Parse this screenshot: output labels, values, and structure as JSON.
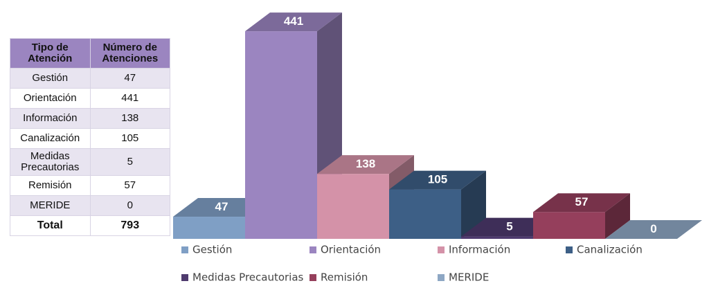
{
  "table": {
    "header": [
      "Tipo de Atención",
      "Número de Atenciones"
    ],
    "rows": [
      [
        "Gestión",
        47
      ],
      [
        "Orientación",
        441
      ],
      [
        "Información",
        138
      ],
      [
        "Canalización",
        105
      ],
      [
        "Medidas Precautorias",
        5
      ],
      [
        "Remisión",
        57
      ],
      [
        "MERIDE",
        0
      ]
    ],
    "total": [
      "Total",
      793
    ]
  },
  "chart_data": {
    "type": "bar3d",
    "categories": [
      "Gestión",
      "Orientación",
      "Información",
      "Canalización",
      "Medidas Precautorias",
      "Remisión",
      "MERIDE"
    ],
    "values": [
      47,
      441,
      138,
      105,
      5,
      57,
      0
    ],
    "colors": [
      "#7f9fc5",
      "#9b85c0",
      "#d492a8",
      "#3d5f86",
      "#4e3a6e",
      "#953f5c",
      "#8ea7c4"
    ]
  }
}
